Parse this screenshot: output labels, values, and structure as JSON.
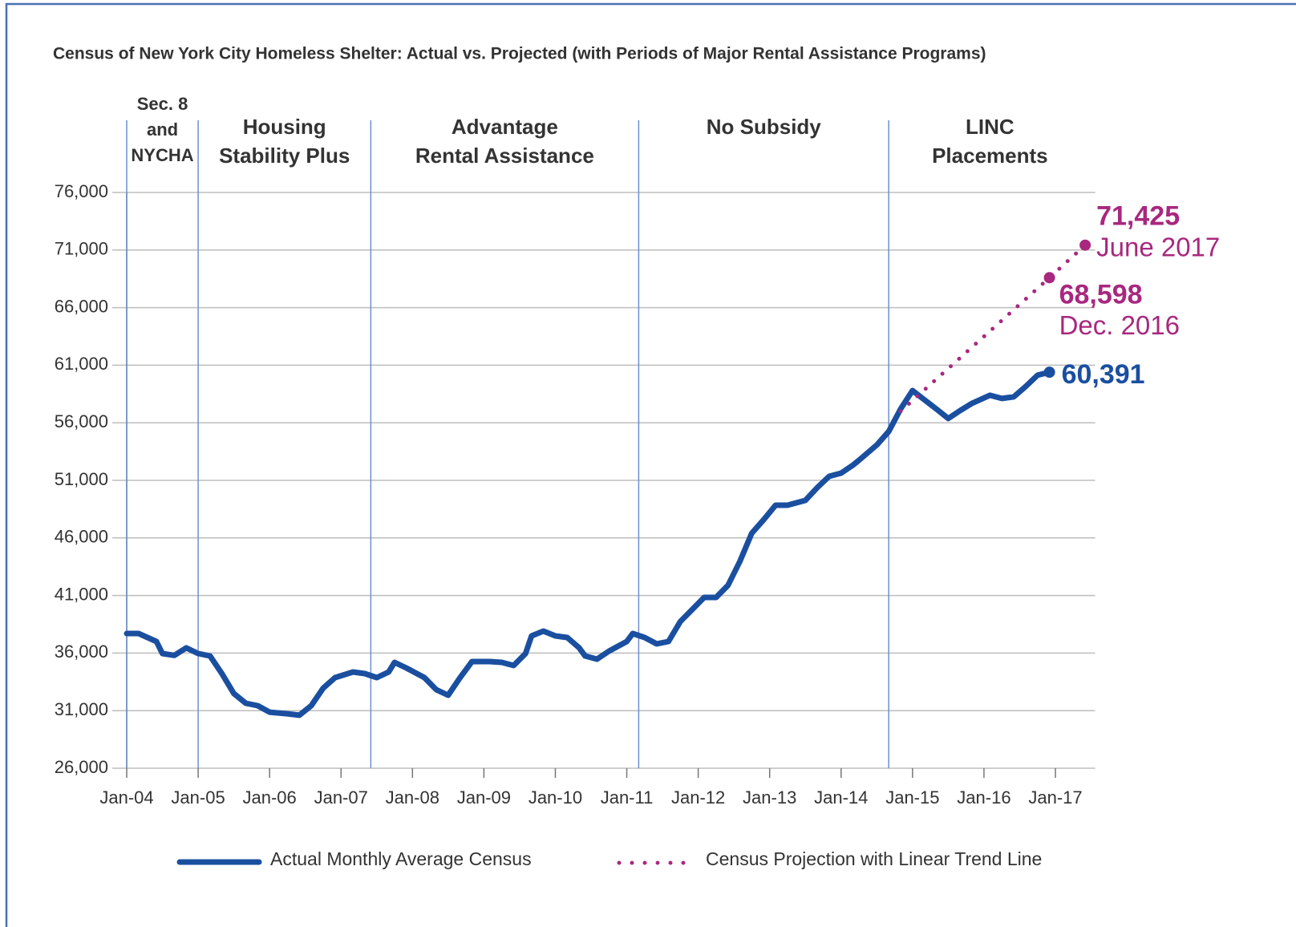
{
  "chart_data": {
    "type": "line",
    "title": "Census of New York City Homeless Shelter: Actual vs. Projected (with Periods of Major Rental Assistance Programs)",
    "xlim": [
      "2004-01",
      "2017-07"
    ],
    "xticks": [
      {
        "value": "2004-01",
        "label": "Jan-04"
      },
      {
        "value": "2005-01",
        "label": "Jan-05"
      },
      {
        "value": "2006-01",
        "label": "Jan-06"
      },
      {
        "value": "2007-01",
        "label": "Jan-07"
      },
      {
        "value": "2008-01",
        "label": "Jan-08"
      },
      {
        "value": "2009-01",
        "label": "Jan-09"
      },
      {
        "value": "2010-01",
        "label": "Jan-10"
      },
      {
        "value": "2011-01",
        "label": "Jan-11"
      },
      {
        "value": "2012-01",
        "label": "Jan-12"
      },
      {
        "value": "2013-01",
        "label": "Jan-13"
      },
      {
        "value": "2014-01",
        "label": "Jan-14"
      },
      {
        "value": "2015-01",
        "label": "Jan-15"
      },
      {
        "value": "2016-01",
        "label": "Jan-16"
      },
      {
        "value": "2017-01",
        "label": "Jan-17"
      }
    ],
    "ylim": [
      26000,
      76000
    ],
    "yticks": [
      {
        "value": 26000,
        "label": "26,000"
      },
      {
        "value": 31000,
        "label": "31,000"
      },
      {
        "value": 36000,
        "label": "36,000"
      },
      {
        "value": 41000,
        "label": "41,000"
      },
      {
        "value": 46000,
        "label": "46,000"
      },
      {
        "value": 51000,
        "label": "51,000"
      },
      {
        "value": 56000,
        "label": "56,000"
      },
      {
        "value": 61000,
        "label": "61,000"
      },
      {
        "value": 66000,
        "label": "66,000"
      },
      {
        "value": 71000,
        "label": "71,000"
      },
      {
        "value": 76000,
        "label": "76,000"
      }
    ],
    "grid": true,
    "legend": "bottom",
    "periods": [
      {
        "label": [
          "Sec. 8",
          "and",
          "NYCHA"
        ],
        "start": "2004-01",
        "end": "2005-01"
      },
      {
        "label": [
          "Housing",
          "Stability Plus"
        ],
        "start": "2005-01",
        "end": "2007-06"
      },
      {
        "label": [
          "Advantage",
          "Rental Assistance"
        ],
        "start": "2007-06",
        "end": "2011-03"
      },
      {
        "label": [
          "No Subsidy"
        ],
        "start": "2011-03",
        "end": "2014-09"
      },
      {
        "label": [
          "LINC",
          "Placements"
        ],
        "start": "2014-09"
      }
    ],
    "series": [
      {
        "name": "Actual Monthly Average Census",
        "color": "#1a4fa0",
        "style": "solid",
        "x": [
          "2004-01",
          "2004-03",
          "2004-06",
          "2004-07",
          "2004-09",
          "2004-11",
          "2005-01",
          "2005-03",
          "2005-05",
          "2005-07",
          "2005-09",
          "2005-11",
          "2006-01",
          "2006-04",
          "2006-06",
          "2006-08",
          "2006-10",
          "2006-12",
          "2007-03",
          "2007-05",
          "2007-07",
          "2007-09",
          "2007-10",
          "2007-12",
          "2008-03",
          "2008-05",
          "2008-07",
          "2008-09",
          "2008-11",
          "2009-02",
          "2009-04",
          "2009-06",
          "2009-08",
          "2009-09",
          "2009-11",
          "2010-01",
          "2010-03",
          "2010-05",
          "2010-06",
          "2010-08",
          "2010-10",
          "2011-01",
          "2011-02",
          "2011-04",
          "2011-06",
          "2011-08",
          "2011-10",
          "2011-12",
          "2012-02",
          "2012-04",
          "2012-06",
          "2012-08",
          "2012-10",
          "2012-12",
          "2013-02",
          "2013-04",
          "2013-07",
          "2013-09",
          "2013-11",
          "2014-01",
          "2014-03",
          "2014-04",
          "2014-07",
          "2014-09",
          "2014-11",
          "2015-01",
          "2015-02",
          "2015-05",
          "2015-07",
          "2015-09",
          "2015-11",
          "2016-02",
          "2016-04",
          "2016-06",
          "2016-08",
          "2016-10",
          "2016-12"
        ],
        "values": [
          37700,
          37700,
          37000,
          35960,
          35800,
          36450,
          35960,
          35750,
          34200,
          32480,
          31640,
          31430,
          30870,
          30730,
          30600,
          31430,
          32960,
          33870,
          34360,
          34220,
          33870,
          34360,
          35190,
          34700,
          33870,
          32820,
          32340,
          33870,
          35260,
          35260,
          35190,
          34920,
          35960,
          37490,
          37910,
          37490,
          37350,
          36450,
          35750,
          35470,
          36170,
          37000,
          37700,
          37350,
          36800,
          37000,
          38740,
          39790,
          40830,
          40830,
          41880,
          43970,
          46410,
          47590,
          48840,
          48840,
          49260,
          50370,
          51350,
          51630,
          52320,
          52740,
          54070,
          55250,
          57200,
          58800,
          58390,
          57200,
          56370,
          57060,
          57690,
          58390,
          58110,
          58250,
          59150,
          60130,
          60391
        ],
        "value_labels": [
          null,
          null,
          null,
          null,
          null,
          null,
          null,
          null,
          null,
          null,
          null,
          null,
          null,
          null,
          null,
          null,
          null,
          null,
          null,
          null,
          null,
          null,
          null,
          null,
          null,
          null,
          null,
          null,
          null,
          null,
          null,
          null,
          null,
          null,
          null,
          null,
          null,
          null,
          null,
          null,
          null,
          null,
          null,
          null,
          null,
          null,
          null,
          null,
          null,
          null,
          null,
          null,
          null,
          null,
          null,
          null,
          null,
          null,
          null,
          null,
          null,
          null,
          null,
          null,
          null,
          null,
          null,
          null,
          null,
          null,
          null,
          null,
          null,
          null,
          null,
          null,
          "60,391"
        ]
      },
      {
        "name": "Census Projection with Linear Trend Line",
        "color": "#a8287f",
        "style": "dotted",
        "x": [
          "2014-11",
          "2016-12",
          "2017-06"
        ],
        "values": [
          57000,
          68598,
          71425
        ],
        "value_labels": [
          null,
          "68,598",
          "71,425"
        ],
        "value_notes": [
          null,
          "Dec. 2016",
          "June 2017"
        ]
      }
    ]
  }
}
